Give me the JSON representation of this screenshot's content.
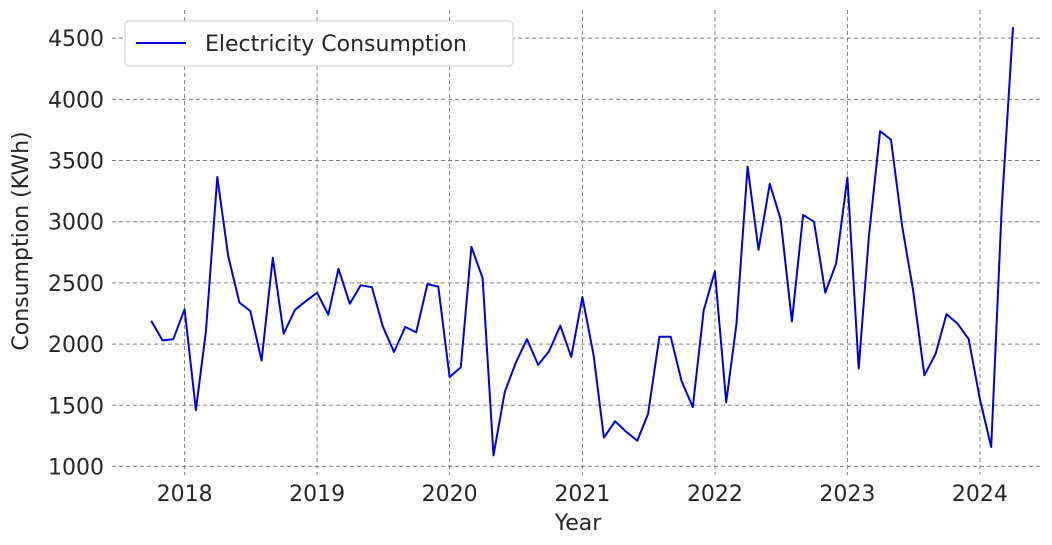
{
  "chart_data": {
    "type": "line",
    "xlabel": "Year",
    "ylabel": "Consumption (KWh)",
    "xlim": [
      "2017-06-15",
      "2024-06-20"
    ],
    "ylim": [
      930,
      4730
    ],
    "x_ticks": [
      "2018",
      "2019",
      "2020",
      "2021",
      "2022",
      "2023",
      "2024"
    ],
    "y_ticks": [
      1000,
      1500,
      2000,
      2500,
      3000,
      3500,
      4000,
      4500
    ],
    "grid": true,
    "legend_position": "top-left",
    "series": [
      {
        "name": "Electricity Consumption",
        "color": "#0000dd",
        "x": [
          "2017-10",
          "2017-11",
          "2017-12",
          "2018-01",
          "2018-02",
          "2018-03",
          "2018-04",
          "2018-05",
          "2018-06",
          "2018-07",
          "2018-08",
          "2018-09",
          "2018-10",
          "2018-11",
          "2018-12",
          "2019-01",
          "2019-02",
          "2019-03",
          "2019-04",
          "2019-05",
          "2019-06",
          "2019-07",
          "2019-08",
          "2019-09",
          "2019-10",
          "2019-11",
          "2019-12",
          "2020-01",
          "2020-02",
          "2020-03",
          "2020-04",
          "2020-05",
          "2020-06",
          "2020-07",
          "2020-08",
          "2020-09",
          "2020-10",
          "2020-11",
          "2020-12",
          "2021-01",
          "2021-02",
          "2021-03",
          "2021-04",
          "2021-05",
          "2021-06",
          "2021-07",
          "2021-08",
          "2021-09",
          "2021-10",
          "2021-11",
          "2021-12",
          "2022-01",
          "2022-02",
          "2022-03",
          "2022-04",
          "2022-05",
          "2022-06",
          "2022-07",
          "2022-08",
          "2022-09",
          "2022-10",
          "2022-11",
          "2022-12",
          "2023-01",
          "2023-02",
          "2023-03",
          "2023-04",
          "2023-05",
          "2023-06",
          "2023-07",
          "2023-08",
          "2023-09",
          "2023-10",
          "2023-11",
          "2023-12",
          "2024-01",
          "2024-02",
          "2024-03",
          "2024-04"
        ],
        "values": [
          2190,
          2030,
          2040,
          2285,
          1460,
          2110,
          3365,
          2720,
          2340,
          2270,
          1865,
          2705,
          2085,
          2280,
          2350,
          2420,
          2240,
          2615,
          2330,
          2480,
          2465,
          2145,
          1935,
          2140,
          2095,
          2490,
          2470,
          1730,
          1810,
          2795,
          2540,
          1090,
          1610,
          1845,
          2040,
          1830,
          1940,
          2150,
          1895,
          2385,
          1905,
          1235,
          1370,
          1285,
          1210,
          1430,
          2060,
          2060,
          1700,
          1485,
          2275,
          2595,
          1525,
          2160,
          3450,
          2770,
          3310,
          3020,
          2185,
          3055,
          3000,
          2420,
          2660,
          3360,
          1800,
          2880,
          3740,
          3670,
          2960,
          2440,
          1745,
          1920,
          2245,
          2165,
          2040,
          1550,
          1160,
          3110,
          4590
        ]
      }
    ]
  }
}
